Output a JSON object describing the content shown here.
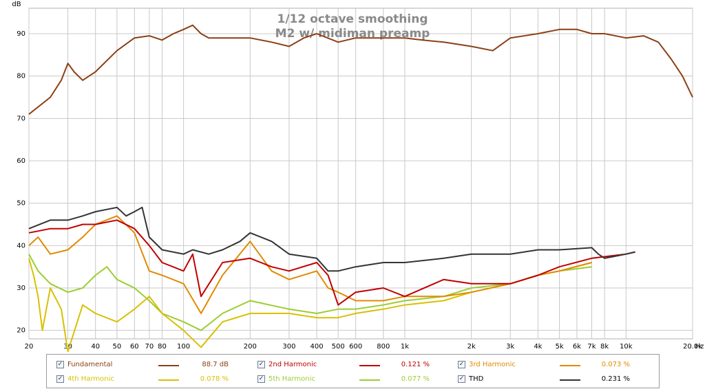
{
  "chart_data": {
    "type": "line",
    "title": "1/12 octave smoothing",
    "subtitle": "M2 w/ midiman preamp",
    "ylabel": "dB",
    "xunit": "Hz",
    "xscale": "log",
    "xlim": [
      20,
      20000
    ],
    "ylim": [
      18,
      96
    ],
    "grid": true,
    "x_ticks": [
      {
        "v": 20,
        "label": "20"
      },
      {
        "v": 30,
        "label": "30"
      },
      {
        "v": 40,
        "label": "40"
      },
      {
        "v": 50,
        "label": "50"
      },
      {
        "v": 60,
        "label": "60"
      },
      {
        "v": 70,
        "label": "70"
      },
      {
        "v": 80,
        "label": "80"
      },
      {
        "v": 100,
        "label": "100"
      },
      {
        "v": 200,
        "label": "200"
      },
      {
        "v": 300,
        "label": "300"
      },
      {
        "v": 400,
        "label": "400"
      },
      {
        "v": 500,
        "label": "500"
      },
      {
        "v": 600,
        "label": "600"
      },
      {
        "v": 800,
        "label": "800"
      },
      {
        "v": 1000,
        "label": "1k"
      },
      {
        "v": 2000,
        "label": "2k"
      },
      {
        "v": 3000,
        "label": "3k"
      },
      {
        "v": 4000,
        "label": "4k"
      },
      {
        "v": 5000,
        "label": "5k"
      },
      {
        "v": 6000,
        "label": "6k"
      },
      {
        "v": 7000,
        "label": "7k"
      },
      {
        "v": 8000,
        "label": "8k"
      },
      {
        "v": 10000,
        "label": "10k"
      },
      {
        "v": 20000,
        "label": "20.0k"
      }
    ],
    "y_ticks": [
      20,
      30,
      40,
      50,
      60,
      70,
      80,
      90
    ],
    "series": [
      {
        "name": "Fundamental",
        "color": "#8b3f14",
        "value": "88.7 dB",
        "points": [
          [
            20,
            71
          ],
          [
            25,
            75
          ],
          [
            28,
            79
          ],
          [
            30,
            83
          ],
          [
            32,
            81
          ],
          [
            35,
            79
          ],
          [
            40,
            81
          ],
          [
            50,
            86
          ],
          [
            60,
            89
          ],
          [
            70,
            89.5
          ],
          [
            80,
            88.5
          ],
          [
            90,
            90
          ],
          [
            100,
            91
          ],
          [
            110,
            92
          ],
          [
            120,
            90
          ],
          [
            130,
            89
          ],
          [
            150,
            89
          ],
          [
            170,
            89
          ],
          [
            200,
            89
          ],
          [
            250,
            88
          ],
          [
            300,
            87
          ],
          [
            350,
            89
          ],
          [
            400,
            90
          ],
          [
            500,
            88
          ],
          [
            600,
            89
          ],
          [
            800,
            89
          ],
          [
            1000,
            89
          ],
          [
            1200,
            88.5
          ],
          [
            1500,
            88
          ],
          [
            2000,
            87
          ],
          [
            2500,
            86
          ],
          [
            3000,
            89
          ],
          [
            4000,
            90
          ],
          [
            5000,
            91
          ],
          [
            6000,
            91
          ],
          [
            7000,
            90
          ],
          [
            8000,
            90
          ],
          [
            10000,
            89
          ],
          [
            12000,
            89.5
          ],
          [
            14000,
            88
          ],
          [
            16000,
            84
          ],
          [
            18000,
            80
          ],
          [
            20000,
            75
          ]
        ]
      },
      {
        "name": "2nd Harmonic",
        "color": "#c00000",
        "value": "0.121 %",
        "points": [
          [
            20,
            43
          ],
          [
            25,
            44
          ],
          [
            30,
            44
          ],
          [
            35,
            45
          ],
          [
            40,
            45
          ],
          [
            50,
            46
          ],
          [
            60,
            44
          ],
          [
            70,
            40
          ],
          [
            80,
            36
          ],
          [
            100,
            34
          ],
          [
            110,
            38
          ],
          [
            120,
            28
          ],
          [
            150,
            36
          ],
          [
            200,
            37
          ],
          [
            250,
            35
          ],
          [
            300,
            34
          ],
          [
            400,
            36
          ],
          [
            450,
            33
          ],
          [
            500,
            26
          ],
          [
            600,
            29
          ],
          [
            800,
            30
          ],
          [
            1000,
            28
          ],
          [
            1500,
            32
          ],
          [
            2000,
            31
          ],
          [
            2500,
            31
          ],
          [
            3000,
            31
          ],
          [
            4000,
            33
          ],
          [
            5000,
            35
          ],
          [
            7000,
            37
          ],
          [
            10000,
            38
          ],
          [
            11000,
            38.5
          ]
        ]
      },
      {
        "name": "3rd Harmonic",
        "color": "#e08a00",
        "value": "0.073 %",
        "points": [
          [
            20,
            40
          ],
          [
            22,
            42
          ],
          [
            25,
            38
          ],
          [
            30,
            39
          ],
          [
            35,
            42
          ],
          [
            40,
            45
          ],
          [
            50,
            47
          ],
          [
            60,
            43
          ],
          [
            70,
            34
          ],
          [
            80,
            33
          ],
          [
            100,
            31
          ],
          [
            120,
            24
          ],
          [
            150,
            33
          ],
          [
            200,
            41
          ],
          [
            250,
            34
          ],
          [
            300,
            32
          ],
          [
            400,
            34
          ],
          [
            450,
            30
          ],
          [
            500,
            29
          ],
          [
            600,
            27
          ],
          [
            800,
            27
          ],
          [
            1000,
            28
          ],
          [
            1500,
            28
          ],
          [
            2000,
            29
          ],
          [
            3000,
            31
          ],
          [
            4000,
            33
          ],
          [
            5000,
            34
          ],
          [
            7000,
            36
          ]
        ]
      },
      {
        "name": "4th Harmonic",
        "color": "#d8c000",
        "value": "0.078 %",
        "points": [
          [
            20,
            37
          ],
          [
            21,
            33
          ],
          [
            22,
            28
          ],
          [
            23,
            20
          ],
          [
            25,
            30
          ],
          [
            28,
            25
          ],
          [
            30,
            15
          ],
          [
            35,
            26
          ],
          [
            40,
            24
          ],
          [
            50,
            22
          ],
          [
            60,
            25
          ],
          [
            70,
            28
          ],
          [
            80,
            24
          ],
          [
            100,
            20
          ],
          [
            120,
            16
          ],
          [
            150,
            22
          ],
          [
            200,
            24
          ],
          [
            300,
            24
          ],
          [
            400,
            23
          ],
          [
            500,
            23
          ],
          [
            600,
            24
          ],
          [
            800,
            25
          ],
          [
            1000,
            26
          ],
          [
            1500,
            27
          ],
          [
            2000,
            29
          ],
          [
            3000,
            31
          ],
          [
            4000,
            33
          ],
          [
            5000,
            34
          ],
          [
            7000,
            36
          ]
        ]
      },
      {
        "name": "5th Harmonic",
        "color": "#9acd32",
        "value": "0.077 %",
        "points": [
          [
            20,
            38
          ],
          [
            22,
            34
          ],
          [
            25,
            31
          ],
          [
            30,
            29
          ],
          [
            35,
            30
          ],
          [
            40,
            33
          ],
          [
            45,
            35
          ],
          [
            50,
            32
          ],
          [
            60,
            30
          ],
          [
            70,
            27
          ],
          [
            80,
            24
          ],
          [
            100,
            22
          ],
          [
            120,
            20
          ],
          [
            150,
            24
          ],
          [
            200,
            27
          ],
          [
            300,
            25
          ],
          [
            400,
            24
          ],
          [
            500,
            25
          ],
          [
            600,
            25
          ],
          [
            800,
            26
          ],
          [
            1000,
            27
          ],
          [
            1500,
            28
          ],
          [
            2000,
            30
          ],
          [
            3000,
            31
          ],
          [
            4000,
            33
          ],
          [
            5000,
            34
          ],
          [
            7000,
            35
          ]
        ]
      },
      {
        "name": "THD",
        "color": "#333333",
        "value": "0.231 %",
        "points": [
          [
            20,
            44
          ],
          [
            25,
            46
          ],
          [
            30,
            46
          ],
          [
            35,
            47
          ],
          [
            40,
            48
          ],
          [
            50,
            49
          ],
          [
            55,
            47
          ],
          [
            60,
            48
          ],
          [
            65,
            49
          ],
          [
            70,
            42
          ],
          [
            80,
            39
          ],
          [
            100,
            38
          ],
          [
            110,
            39
          ],
          [
            130,
            38
          ],
          [
            150,
            39
          ],
          [
            180,
            41
          ],
          [
            200,
            43
          ],
          [
            250,
            41
          ],
          [
            300,
            38
          ],
          [
            400,
            37
          ],
          [
            450,
            34
          ],
          [
            500,
            34
          ],
          [
            600,
            35
          ],
          [
            800,
            36
          ],
          [
            1000,
            36
          ],
          [
            1500,
            37
          ],
          [
            2000,
            38
          ],
          [
            3000,
            38
          ],
          [
            4000,
            39
          ],
          [
            5000,
            39
          ],
          [
            7000,
            39.5
          ],
          [
            7500,
            38
          ],
          [
            8000,
            37
          ],
          [
            10000,
            38
          ],
          [
            11000,
            38.5
          ]
        ]
      }
    ]
  }
}
